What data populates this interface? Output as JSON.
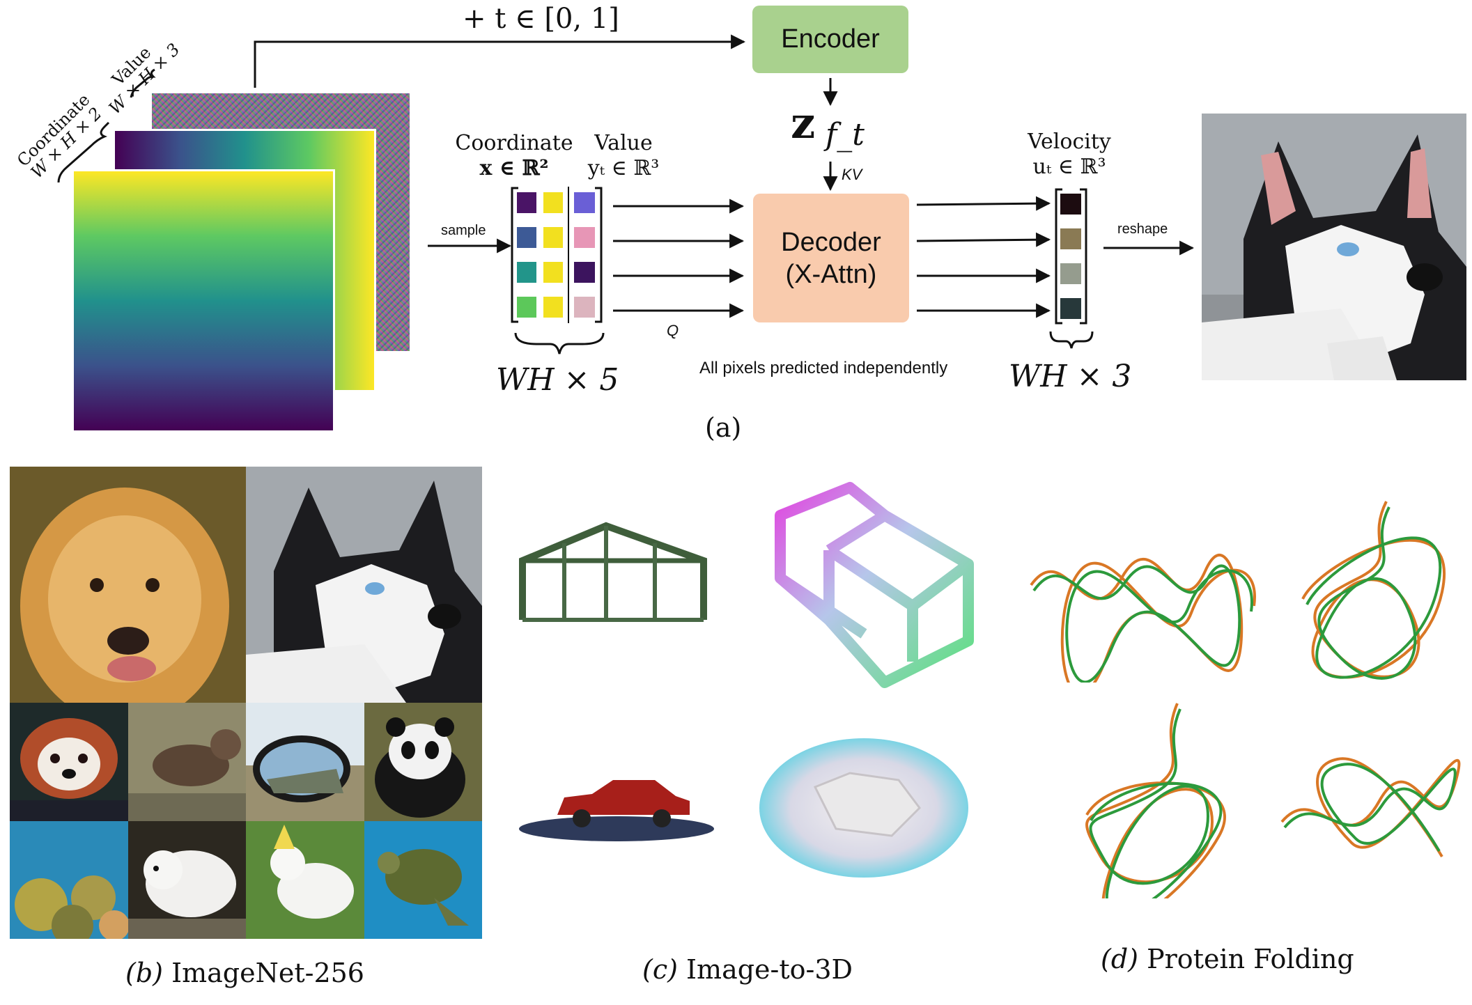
{
  "panel_a": {
    "top_label": "+ t ∈ [0, 1]",
    "encoder_label": "Encoder",
    "latent_label": "z",
    "latent_sub": "f_t",
    "kv_label": "KV",
    "q_label": "Q",
    "sample_label": "sample",
    "reshape_label": "reshape",
    "decoder_line1": "Decoder",
    "decoder_line2": "(X-Attn)",
    "independent_note": "All pixels predicted independently",
    "coord_header": "Coordinate",
    "coord_math": "x ∈ ℝ²",
    "value_header": "Value",
    "value_math": "yₜ ∈ ℝ³",
    "velocity_header": "Velocity",
    "velocity_math": "uₜ ∈ ℝ³",
    "wh5_label": "WH × 5",
    "wh3_label": "WH × 3",
    "stack_coord_label": "Coordinate",
    "stack_coord_dims": "W × H × 2",
    "stack_value_label": "Value",
    "stack_value_dims": "W × H × 3",
    "caption": "(a)",
    "colors": {
      "encoder": "#a9d18e",
      "decoder": "#f9cbad",
      "token_coord": [
        "#4a1466",
        "#3d5a96",
        "#22958a",
        "#5cc85a"
      ],
      "token_yellow": "#f2e01f",
      "token_value": [
        "#6a5fd6",
        "#e796b6",
        "#3c145e",
        "#dcb4be"
      ],
      "velocity": [
        "#1c0c10",
        "#8a7a54",
        "#959c8e",
        "#27383a"
      ]
    }
  },
  "panel_b": {
    "caption_letter": "(b)",
    "caption_text": "ImageNet-256",
    "images": [
      "golden-retriever",
      "husky",
      "red-panda",
      "otter",
      "car-side-mirror",
      "panda",
      "coral-reef",
      "arctic-fox",
      "cockatoo",
      "sea-turtle"
    ]
  },
  "panel_c": {
    "caption_letter": "(c)",
    "caption_text": "Image-to-3D"
  },
  "panel_d": {
    "caption_letter": "(d)",
    "caption_text": "Protein Folding"
  }
}
